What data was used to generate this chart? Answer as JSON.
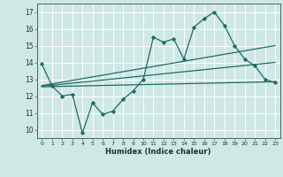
{
  "xlabel": "Humidex (Indice chaleur)",
  "xlim": [
    -0.5,
    23.5
  ],
  "ylim": [
    9.5,
    17.5
  ],
  "yticks": [
    10,
    11,
    12,
    13,
    14,
    15,
    16,
    17
  ],
  "xticks": [
    0,
    1,
    2,
    3,
    4,
    5,
    6,
    7,
    8,
    9,
    10,
    11,
    12,
    13,
    14,
    15,
    16,
    17,
    18,
    19,
    20,
    21,
    22,
    23
  ],
  "bg_color": "#cfe8e6",
  "line_color": "#1e6b62",
  "grid_color": "#ffffff",
  "main_x": [
    0,
    1,
    2,
    3,
    4,
    5,
    6,
    7,
    8,
    9,
    10,
    11,
    12,
    13,
    14,
    15,
    16,
    17,
    18,
    19,
    20,
    21,
    22,
    23
  ],
  "main_y": [
    13.9,
    12.6,
    12.0,
    12.1,
    9.8,
    11.6,
    10.9,
    11.1,
    11.8,
    12.3,
    13.0,
    15.5,
    15.2,
    15.4,
    14.2,
    16.1,
    16.6,
    17.0,
    16.2,
    15.0,
    14.2,
    13.8,
    13.0,
    12.8
  ],
  "trend1_x": [
    0,
    23
  ],
  "trend1_y": [
    12.62,
    15.0
  ],
  "trend2_x": [
    0,
    23
  ],
  "trend2_y": [
    12.55,
    12.85
  ],
  "trend3_x": [
    0,
    23
  ],
  "trend3_y": [
    12.58,
    14.0
  ]
}
